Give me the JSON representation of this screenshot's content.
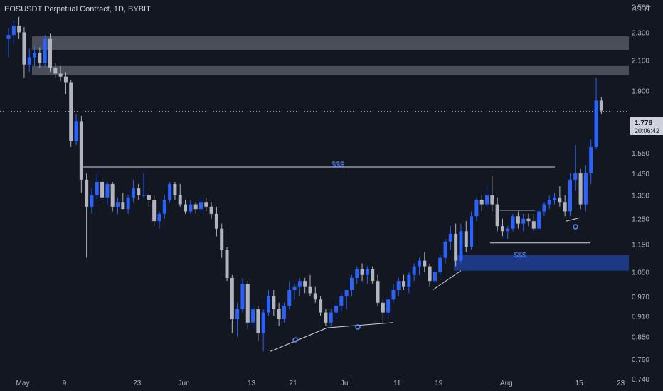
{
  "header": {
    "title": "EOSUSDT Perpetual Contract, 1D, BYBIT"
  },
  "price_axis": {
    "currency": "USDT"
  },
  "last_price": {
    "value": "1.776",
    "countdown": "20:06:42"
  },
  "annotations": {
    "liquidity_top": "$$$",
    "liquidity_bottom": "$$$"
  },
  "colors": {
    "up": "#2962ff",
    "down": "#b2b5be",
    "background": "#131722",
    "zone_gray": "#787b86",
    "zone_blue": "#1e3a8a"
  },
  "chart_data": {
    "type": "candlestick",
    "title": "EOSUSDT Perpetual Contract, 1D, BYBIT",
    "ylabel": "USDT",
    "yscale": "log",
    "ylim": [
      0.72,
      2.58
    ],
    "y_ticks": [
      "2.500",
      "2.300",
      "2.100",
      "1.900",
      "1.776",
      "1.550",
      "1.450",
      "1.350",
      "1.250",
      "1.150",
      "1.050",
      "0.970",
      "0.910",
      "0.850",
      "0.790",
      "0.740"
    ],
    "x_ticks": [
      "May",
      "9",
      "23",
      "Jun",
      "13",
      "21",
      "Jul",
      "11",
      "19",
      "Aug",
      "15",
      "23"
    ],
    "x_tick_index": [
      0,
      8,
      22,
      31,
      44,
      52,
      62,
      72,
      80,
      93,
      107,
      115
    ],
    "candles": [
      [
        2.25,
        2.33,
        2.12,
        2.28
      ],
      [
        2.28,
        2.39,
        2.22,
        2.35
      ],
      [
        2.35,
        2.42,
        2.25,
        2.3
      ],
      [
        2.3,
        2.34,
        1.98,
        2.07
      ],
      [
        2.07,
        2.18,
        2.02,
        2.12
      ],
      [
        2.12,
        2.2,
        2.06,
        2.15
      ],
      [
        2.15,
        2.19,
        2.05,
        2.08
      ],
      [
        2.08,
        2.28,
        2.05,
        2.25
      ],
      [
        2.25,
        2.29,
        2.02,
        2.05
      ],
      [
        2.05,
        2.08,
        1.98,
        2.01
      ],
      [
        2.01,
        2.06,
        1.96,
        1.99
      ],
      [
        1.99,
        2.02,
        1.88,
        1.95
      ],
      [
        1.95,
        1.97,
        1.58,
        1.61
      ],
      [
        1.61,
        1.76,
        1.59,
        1.72
      ],
      [
        1.72,
        1.75,
        1.36,
        1.42
      ],
      [
        1.42,
        1.45,
        1.1,
        1.3
      ],
      [
        1.3,
        1.38,
        1.27,
        1.35
      ],
      [
        1.35,
        1.45,
        1.33,
        1.41
      ],
      [
        1.41,
        1.43,
        1.33,
        1.34
      ],
      [
        1.34,
        1.41,
        1.31,
        1.4
      ],
      [
        1.4,
        1.41,
        1.28,
        1.3
      ],
      [
        1.3,
        1.34,
        1.27,
        1.32
      ],
      [
        1.32,
        1.36,
        1.29,
        1.29
      ],
      [
        1.29,
        1.35,
        1.27,
        1.34
      ],
      [
        1.34,
        1.42,
        1.32,
        1.38
      ],
      [
        1.38,
        1.4,
        1.33,
        1.35
      ],
      [
        1.35,
        1.45,
        1.34,
        1.35
      ],
      [
        1.35,
        1.36,
        1.3,
        1.33
      ],
      [
        1.33,
        1.35,
        1.22,
        1.24
      ],
      [
        1.24,
        1.28,
        1.21,
        1.27
      ],
      [
        1.27,
        1.35,
        1.25,
        1.33
      ],
      [
        1.33,
        1.41,
        1.32,
        1.4
      ],
      [
        1.4,
        1.41,
        1.33,
        1.35
      ],
      [
        1.35,
        1.4,
        1.3,
        1.31
      ],
      [
        1.31,
        1.33,
        1.27,
        1.28
      ],
      [
        1.28,
        1.33,
        1.27,
        1.31
      ],
      [
        1.31,
        1.32,
        1.27,
        1.29
      ],
      [
        1.29,
        1.34,
        1.27,
        1.32
      ],
      [
        1.32,
        1.34,
        1.28,
        1.3
      ],
      [
        1.3,
        1.32,
        1.25,
        1.27
      ],
      [
        1.27,
        1.3,
        1.18,
        1.21
      ],
      [
        1.21,
        1.23,
        1.1,
        1.13
      ],
      [
        1.13,
        1.14,
        1.02,
        1.03
      ],
      [
        1.03,
        1.04,
        0.86,
        0.9
      ],
      [
        0.9,
        0.95,
        0.85,
        0.93
      ],
      [
        0.93,
        1.03,
        0.92,
        1.01
      ],
      [
        1.01,
        1.02,
        0.87,
        0.89
      ],
      [
        0.89,
        0.95,
        0.87,
        0.93
      ],
      [
        0.93,
        0.94,
        0.84,
        0.86
      ],
      [
        0.86,
        0.93,
        0.81,
        0.92
      ],
      [
        0.92,
        0.99,
        0.91,
        0.97
      ],
      [
        0.97,
        0.99,
        0.91,
        0.93
      ],
      [
        0.93,
        0.95,
        0.88,
        0.9
      ],
      [
        0.9,
        0.95,
        0.89,
        0.94
      ],
      [
        0.94,
        1.02,
        0.93,
        0.99
      ],
      [
        0.99,
        1.01,
        0.96,
        1.0
      ],
      [
        1.0,
        1.03,
        0.97,
        1.02
      ],
      [
        1.02,
        1.03,
        0.98,
        1.0
      ],
      [
        1.0,
        1.04,
        0.97,
        0.98
      ],
      [
        0.98,
        1.0,
        0.95,
        0.96
      ],
      [
        0.96,
        0.97,
        0.91,
        0.92
      ],
      [
        0.92,
        0.93,
        0.88,
        0.89
      ],
      [
        0.89,
        0.93,
        0.88,
        0.92
      ],
      [
        0.92,
        0.95,
        0.9,
        0.94
      ],
      [
        0.94,
        0.98,
        0.92,
        0.97
      ],
      [
        0.97,
        0.99,
        0.93,
        0.99
      ],
      [
        0.99,
        1.04,
        0.97,
        1.03
      ],
      [
        1.03,
        1.07,
        1.01,
        1.06
      ],
      [
        1.06,
        1.08,
        1.02,
        1.04
      ],
      [
        1.04,
        1.07,
        1.01,
        1.06
      ],
      [
        1.06,
        1.07,
        1.01,
        1.02
      ],
      [
        1.02,
        1.04,
        0.94,
        0.95
      ],
      [
        0.95,
        0.96,
        0.89,
        0.92
      ],
      [
        0.92,
        0.97,
        0.9,
        0.96
      ],
      [
        0.96,
        1.01,
        0.95,
        0.99
      ],
      [
        0.99,
        1.03,
        0.97,
        1.02
      ],
      [
        1.02,
        1.04,
        0.99,
        1.0
      ],
      [
        1.0,
        1.05,
        0.98,
        1.04
      ],
      [
        1.04,
        1.08,
        1.02,
        1.07
      ],
      [
        1.07,
        1.1,
        1.04,
        1.09
      ],
      [
        1.09,
        1.12,
        1.05,
        1.07
      ],
      [
        1.07,
        1.08,
        1.0,
        1.02
      ],
      [
        1.02,
        1.06,
        1.01,
        1.05
      ],
      [
        1.05,
        1.11,
        1.04,
        1.1
      ],
      [
        1.1,
        1.17,
        1.08,
        1.16
      ],
      [
        1.16,
        1.22,
        1.13,
        1.19
      ],
      [
        1.19,
        1.23,
        1.07,
        1.09
      ],
      [
        1.09,
        1.23,
        1.08,
        1.2
      ],
      [
        1.2,
        1.24,
        1.12,
        1.14
      ],
      [
        1.14,
        1.28,
        1.13,
        1.26
      ],
      [
        1.26,
        1.34,
        1.24,
        1.33
      ],
      [
        1.33,
        1.35,
        1.28,
        1.31
      ],
      [
        1.31,
        1.39,
        1.3,
        1.35
      ],
      [
        1.35,
        1.44,
        1.28,
        1.31
      ],
      [
        1.31,
        1.34,
        1.2,
        1.22
      ],
      [
        1.22,
        1.25,
        1.18,
        1.2
      ],
      [
        1.2,
        1.22,
        1.17,
        1.21
      ],
      [
        1.21,
        1.27,
        1.2,
        1.26
      ],
      [
        1.26,
        1.28,
        1.21,
        1.23
      ],
      [
        1.23,
        1.27,
        1.2,
        1.25
      ],
      [
        1.25,
        1.27,
        1.22,
        1.24
      ],
      [
        1.24,
        1.27,
        1.2,
        1.21
      ],
      [
        1.21,
        1.29,
        1.2,
        1.28
      ],
      [
        1.28,
        1.32,
        1.26,
        1.31
      ],
      [
        1.31,
        1.35,
        1.29,
        1.33
      ],
      [
        1.33,
        1.36,
        1.31,
        1.34
      ],
      [
        1.34,
        1.39,
        1.3,
        1.32
      ],
      [
        1.32,
        1.35,
        1.26,
        1.28
      ],
      [
        1.28,
        1.45,
        1.26,
        1.42
      ],
      [
        1.42,
        1.59,
        1.37,
        1.45
      ],
      [
        1.45,
        1.47,
        1.29,
        1.31
      ],
      [
        1.31,
        1.49,
        1.28,
        1.45
      ],
      [
        1.45,
        1.62,
        1.4,
        1.58
      ],
      [
        1.58,
        1.98,
        1.57,
        1.84
      ],
      [
        1.84,
        1.86,
        1.76,
        1.78
      ]
    ]
  }
}
